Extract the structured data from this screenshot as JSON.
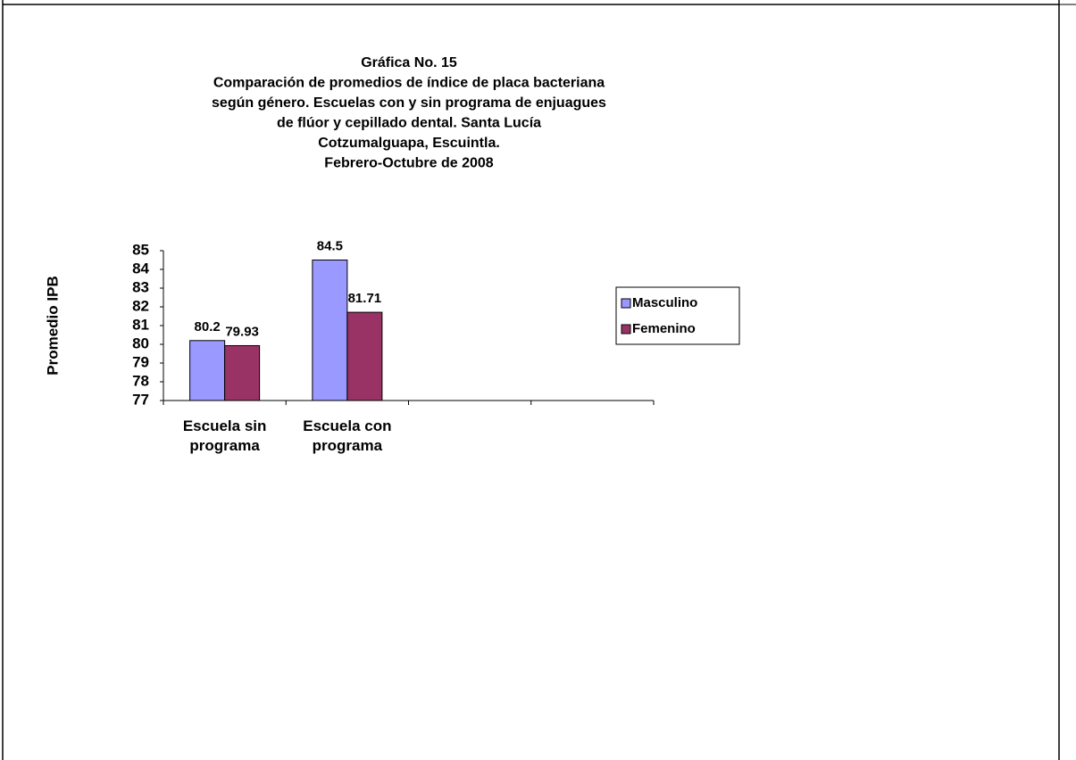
{
  "chart_data": {
    "type": "bar",
    "title": [
      "Gráfica No. 15",
      "Comparación de promedios de índice de placa bacteriana",
      "según género. Escuelas con y sin programa de enjuagues",
      "de flúor y cepillado dental. Santa Lucía",
      "Cotzumalguapa, Escuintla.",
      "Febrero-Octubre de 2008"
    ],
    "y_label": "Promedio IPB",
    "categories": [
      "Escuela sin programa",
      "Escuela con programa",
      null,
      null
    ],
    "series": [
      {
        "name": "Masculino",
        "color": "#9999ff",
        "values": [
          80.2,
          84.5,
          null,
          null
        ]
      },
      {
        "name": "Femenino",
        "color": "#993366",
        "values": [
          79.93,
          81.71,
          null,
          null
        ]
      }
    ],
    "ylim": [
      77,
      85
    ],
    "yticks": [
      77,
      78,
      79,
      80,
      81,
      82,
      83,
      84,
      85
    ],
    "legend": "right",
    "grid": false
  }
}
